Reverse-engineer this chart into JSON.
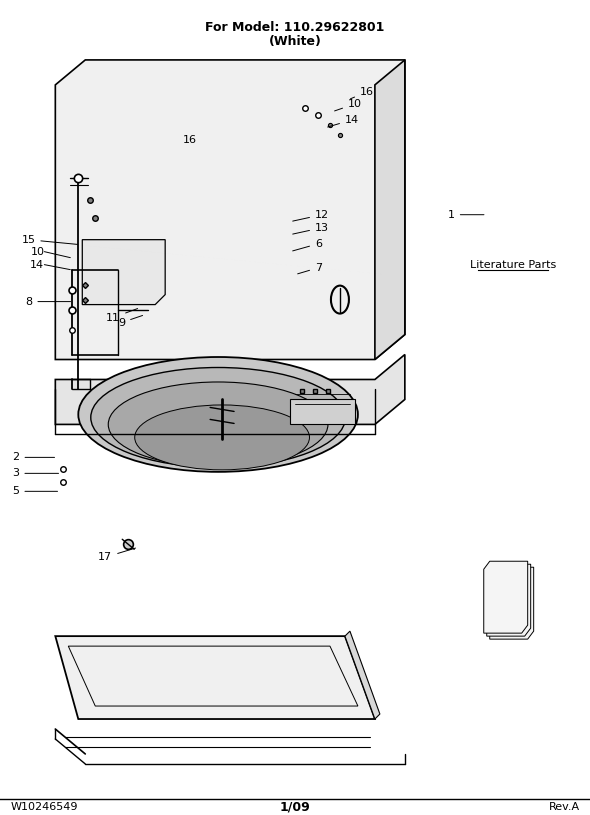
{
  "title_line1": "For Model: 110.29622801",
  "title_line2": "(White)",
  "footer_left": "W10246549",
  "footer_center": "1/09",
  "footer_right": "Rev.A",
  "lit_parts_label": "Literature Parts",
  "background_color": "#ffffff",
  "line_color": "#000000"
}
